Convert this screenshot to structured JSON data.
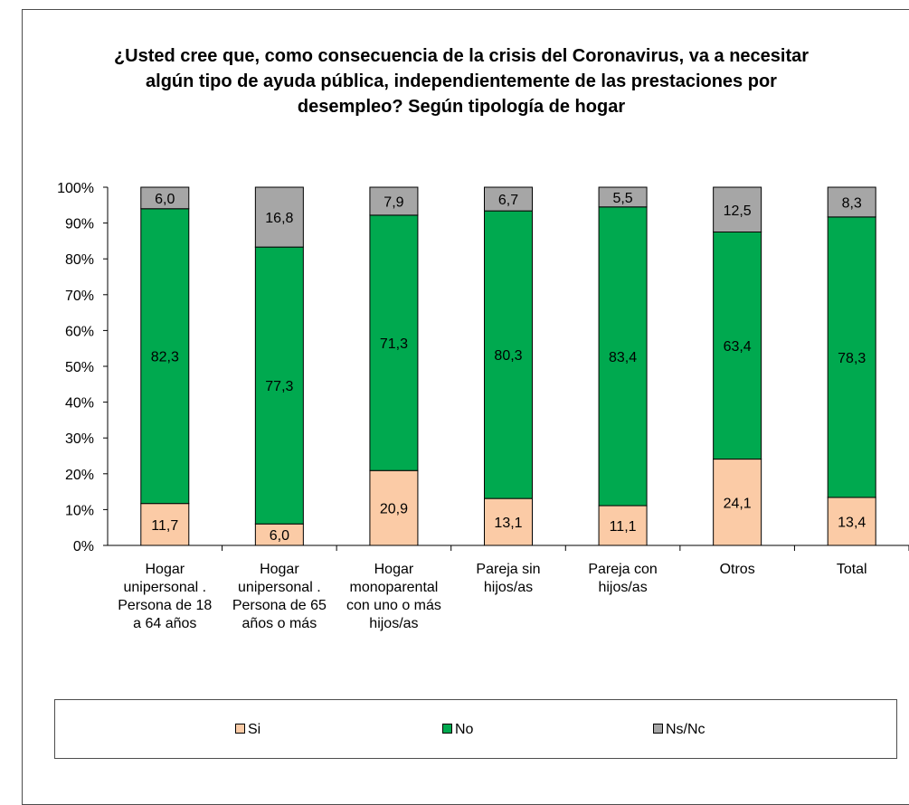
{
  "chart_data": {
    "type": "bar",
    "stacked": true,
    "title": "¿Usted cree que, como consecuencia de la crisis del Coronavirus, va a necesitar algún tipo de ayuda pública, independientemente de las prestaciones por desempleo? Según tipología de hogar",
    "xlabel": "",
    "ylabel": "",
    "ylim": [
      0,
      100
    ],
    "yticks": [
      "0%",
      "10%",
      "20%",
      "30%",
      "40%",
      "50%",
      "60%",
      "70%",
      "80%",
      "90%",
      "100%"
    ],
    "categories": [
      "Hogar unipersonal . Persona de 18 a 64 años",
      "Hogar unipersonal . Persona de 65 años o más",
      "Hogar monoparental con uno o más hijos/as",
      "Pareja sin hijos/as",
      "Pareja con hijos/as",
      "Otros",
      "Total"
    ],
    "category_lines": [
      [
        "Hogar",
        "unipersonal .",
        "Persona de 18",
        "a 64 años"
      ],
      [
        "Hogar",
        "unipersonal .",
        "Persona de 65",
        "años o más"
      ],
      [
        "Hogar",
        "monoparental",
        "con uno o más",
        "hijos/as"
      ],
      [
        "Pareja sin",
        "hijos/as"
      ],
      [
        "Pareja con",
        "hijos/as"
      ],
      [
        "Otros"
      ],
      [
        "Total"
      ]
    ],
    "series": [
      {
        "name": "Si",
        "color": "#fbcba6",
        "values": [
          11.7,
          6.0,
          20.9,
          13.1,
          11.1,
          24.1,
          13.4
        ],
        "labels": [
          "11,7",
          "6,0",
          "20,9",
          "13,1",
          "11,1",
          "24,1",
          "13,4"
        ]
      },
      {
        "name": "No",
        "color": "#00a94f",
        "values": [
          82.3,
          77.3,
          71.3,
          80.3,
          83.4,
          63.4,
          78.3
        ],
        "labels": [
          "82,3",
          "77,3",
          "71,3",
          "80,3",
          "83,4",
          "63,4",
          "78,3"
        ]
      },
      {
        "name": "Ns/Nc",
        "color": "#a6a6a6",
        "values": [
          6.0,
          16.8,
          7.9,
          6.7,
          5.5,
          12.5,
          8.3
        ],
        "labels": [
          "6,0",
          "16,8",
          "7,9",
          "6,7",
          "5,5",
          "12,5",
          "8,3"
        ]
      }
    ],
    "grid": false,
    "legend_position": "bottom"
  }
}
